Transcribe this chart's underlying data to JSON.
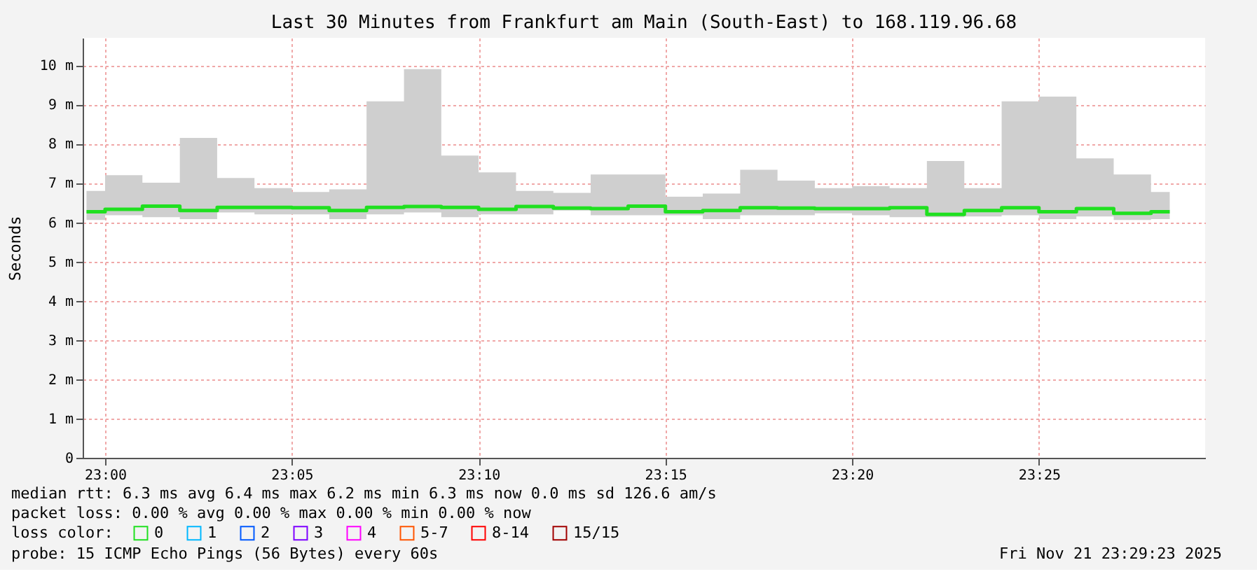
{
  "chart_data": {
    "type": "step",
    "title": "Last 30 Minutes from Frankfurt am Main (South-East) to 168.119.96.68",
    "ylabel": "Seconds",
    "x": [
      22.9917,
      23.0083,
      23.025,
      23.0417,
      23.0583,
      23.075,
      23.0917,
      23.1083,
      23.125,
      23.1417,
      23.1583,
      23.175,
      23.1917,
      23.2083,
      23.225,
      23.2417,
      23.2583,
      23.275,
      23.2917,
      23.3083,
      23.325,
      23.3417,
      23.3583,
      23.375,
      23.3917,
      23.4083,
      23.425,
      23.4417,
      23.4583,
      23.475
    ],
    "xlim": [
      22.99,
      23.4908
    ],
    "xticks": [
      {
        "value": 23.0,
        "label": "23:00"
      },
      {
        "value": 23.0833,
        "label": "23:05"
      },
      {
        "value": 23.1667,
        "label": "23:10"
      },
      {
        "value": 23.25,
        "label": "23:15"
      },
      {
        "value": 23.3333,
        "label": "23:20"
      },
      {
        "value": 23.4167,
        "label": "23:25"
      }
    ],
    "ylim": [
      0,
      10.7
    ],
    "yticks": [
      0,
      {
        "value": 1,
        "label": "1 m"
      },
      {
        "value": 2,
        "label": "2 m"
      },
      {
        "value": 3,
        "label": "3 m"
      },
      {
        "value": 4,
        "label": "4 m"
      },
      {
        "value": 5,
        "label": "5 m"
      },
      {
        "value": 6,
        "label": "6 m"
      },
      {
        "value": 7,
        "label": "7 m"
      },
      {
        "value": 8,
        "label": "8 m"
      },
      {
        "value": 9,
        "label": "9 m"
      },
      {
        "value": 10,
        "label": "10 m"
      }
    ],
    "grid": true,
    "legend": "bottom",
    "legend_title": "loss color:",
    "series": [
      {
        "name": "0",
        "color": "#20e020",
        "values": [
          6.27,
          6.33,
          6.41,
          6.3,
          6.38,
          6.38,
          6.37,
          6.3,
          6.38,
          6.4,
          6.38,
          6.33,
          6.4,
          6.36,
          6.35,
          6.41,
          6.27,
          6.3,
          6.37,
          6.36,
          6.35,
          6.35,
          6.37,
          6.2,
          6.3,
          6.37,
          6.27,
          6.35,
          6.23,
          6.27
        ],
        "lower": [
          6.06,
          6.18,
          6.13,
          6.08,
          6.25,
          6.2,
          6.2,
          6.08,
          6.2,
          6.25,
          6.13,
          6.2,
          6.2,
          6.3,
          6.18,
          6.18,
          6.18,
          6.08,
          6.18,
          6.18,
          6.23,
          6.18,
          6.13,
          6.13,
          6.15,
          6.18,
          6.08,
          6.15,
          6.06,
          6.08
        ],
        "upper": [
          6.8,
          7.2,
          7.01,
          8.15,
          7.13,
          6.87,
          6.77,
          6.84,
          9.08,
          9.9,
          7.7,
          7.27,
          6.8,
          6.75,
          7.22,
          7.22,
          6.65,
          6.73,
          7.34,
          7.06,
          6.87,
          6.92,
          6.87,
          7.56,
          6.87,
          9.08,
          9.2,
          7.63,
          7.22,
          6.77
        ]
      },
      {
        "name": "1",
        "color": "#00b8ff",
        "values": [
          null,
          null,
          null,
          null,
          null,
          null,
          null,
          null,
          null,
          null,
          null,
          null,
          null,
          null,
          null,
          null,
          null,
          null,
          null,
          null,
          null,
          null,
          null,
          null,
          null,
          null,
          null,
          null,
          null,
          null
        ]
      },
      {
        "name": "2",
        "color": "#0059ff",
        "values": [
          null,
          null,
          null,
          null,
          null,
          null,
          null,
          null,
          null,
          null,
          null,
          null,
          null,
          null,
          null,
          null,
          null,
          null,
          null,
          null,
          null,
          null,
          null,
          null,
          null,
          null,
          null,
          null,
          null,
          null
        ]
      },
      {
        "name": "3",
        "color": "#7e00ff",
        "values": [
          null,
          null,
          null,
          null,
          null,
          null,
          null,
          null,
          null,
          null,
          null,
          null,
          null,
          null,
          null,
          null,
          null,
          null,
          null,
          null,
          null,
          null,
          null,
          null,
          null,
          null,
          null,
          null,
          null,
          null
        ]
      },
      {
        "name": "4",
        "color": "#ff00ff",
        "values": [
          null,
          null,
          null,
          null,
          null,
          null,
          null,
          null,
          null,
          null,
          null,
          null,
          null,
          null,
          null,
          null,
          null,
          null,
          null,
          null,
          null,
          null,
          null,
          null,
          null,
          null,
          null,
          null,
          null,
          null
        ]
      },
      {
        "name": "5-7",
        "color": "#ff5500",
        "values": [
          null,
          null,
          null,
          null,
          null,
          null,
          null,
          null,
          null,
          null,
          null,
          null,
          null,
          null,
          null,
          null,
          null,
          null,
          null,
          null,
          null,
          null,
          null,
          null,
          null,
          null,
          null,
          null,
          null,
          null
        ]
      },
      {
        "name": "8-14",
        "color": "#ff0000",
        "values": [
          null,
          null,
          null,
          null,
          null,
          null,
          null,
          null,
          null,
          null,
          null,
          null,
          null,
          null,
          null,
          null,
          null,
          null,
          null,
          null,
          null,
          null,
          null,
          null,
          null,
          null,
          null,
          null,
          null,
          null
        ]
      },
      {
        "name": "15/15",
        "color": "#a10000",
        "values": [
          null,
          null,
          null,
          null,
          null,
          null,
          null,
          null,
          null,
          null,
          null,
          null,
          null,
          null,
          null,
          null,
          null,
          null,
          null,
          null,
          null,
          null,
          null,
          null,
          null,
          null,
          null,
          null,
          null,
          null
        ]
      }
    ],
    "annotations": [
      "median rtt:  6.3 ms avg  6.4 ms max  6.2 ms min  6.3 ms now  0.0 ms sd  126.6   am/s",
      "packet loss: 0.00 % avg  0.00 % max  0.00 % min  0.00 % now",
      "probe:       15 ICMP Echo Pings (56 Bytes) every 60s",
      "Fri Nov 21 23:29:23 2025"
    ]
  }
}
